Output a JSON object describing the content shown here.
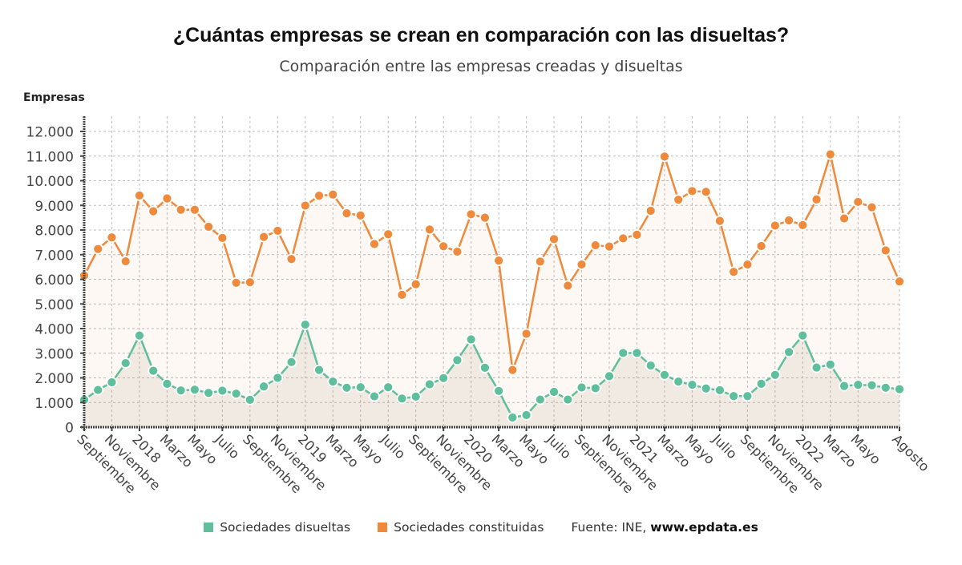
{
  "chart_data": {
    "type": "line",
    "title": "¿Cuántas empresas se crean en comparación con las disueltas?",
    "subtitle": "Comparación entre las empresas creadas y disueltas",
    "ylabel": "Empresas",
    "xlabel": "",
    "ylim": [
      0,
      12000
    ],
    "yticks": [
      0,
      1000,
      2000,
      3000,
      4000,
      5000,
      6000,
      7000,
      8000,
      9000,
      10000,
      11000,
      12000
    ],
    "ytick_labels": [
      "0",
      "1.000",
      "2.000",
      "3.000",
      "4.000",
      "5.000",
      "6.000",
      "7.000",
      "8.000",
      "9.000",
      "10.000",
      "11.000",
      "12.000"
    ],
    "grid": true,
    "legend_position": "bottom",
    "x": [
      "2017-09",
      "2017-10",
      "2017-11",
      "2017-12",
      "2018-01",
      "2018-02",
      "2018-03",
      "2018-04",
      "2018-05",
      "2018-06",
      "2018-07",
      "2018-08",
      "2018-09",
      "2018-10",
      "2018-11",
      "2018-12",
      "2019-01",
      "2019-02",
      "2019-03",
      "2019-04",
      "2019-05",
      "2019-06",
      "2019-07",
      "2019-08",
      "2019-09",
      "2019-10",
      "2019-11",
      "2019-12",
      "2020-01",
      "2020-02",
      "2020-03",
      "2020-04",
      "2020-05",
      "2020-06",
      "2020-07",
      "2020-08",
      "2020-09",
      "2020-10",
      "2020-11",
      "2020-12",
      "2021-01",
      "2021-02",
      "2021-03",
      "2021-04",
      "2021-05",
      "2021-06",
      "2021-07",
      "2021-08",
      "2021-09",
      "2021-10",
      "2021-11",
      "2021-12",
      "2022-01",
      "2022-02",
      "2022-03",
      "2022-04",
      "2022-05",
      "2022-06",
      "2022-07",
      "2022-08"
    ],
    "xtick_labels": [
      {
        "index": 0,
        "label": "Septiembre"
      },
      {
        "index": 2,
        "label": "Noviembre"
      },
      {
        "index": 4,
        "label": "2018"
      },
      {
        "index": 6,
        "label": "Marzo"
      },
      {
        "index": 8,
        "label": "Mayo"
      },
      {
        "index": 10,
        "label": "Julio"
      },
      {
        "index": 12,
        "label": "Septiembre"
      },
      {
        "index": 14,
        "label": "Noviembre"
      },
      {
        "index": 16,
        "label": "2019"
      },
      {
        "index": 18,
        "label": "Marzo"
      },
      {
        "index": 20,
        "label": "Mayo"
      },
      {
        "index": 22,
        "label": "Julio"
      },
      {
        "index": 24,
        "label": "Septiembre"
      },
      {
        "index": 26,
        "label": "Noviembre"
      },
      {
        "index": 28,
        "label": "2020"
      },
      {
        "index": 30,
        "label": "Marzo"
      },
      {
        "index": 32,
        "label": "Mayo"
      },
      {
        "index": 34,
        "label": "Julio"
      },
      {
        "index": 36,
        "label": "Septiembre"
      },
      {
        "index": 38,
        "label": "Noviembre"
      },
      {
        "index": 40,
        "label": "2021"
      },
      {
        "index": 42,
        "label": "Marzo"
      },
      {
        "index": 44,
        "label": "Mayo"
      },
      {
        "index": 46,
        "label": "Julio"
      },
      {
        "index": 48,
        "label": "Septiembre"
      },
      {
        "index": 50,
        "label": "Noviembre"
      },
      {
        "index": 52,
        "label": "2022"
      },
      {
        "index": 54,
        "label": "Marzo"
      },
      {
        "index": 56,
        "label": "Mayo"
      },
      {
        "index": 59,
        "label": "Agosto"
      }
    ],
    "series": [
      {
        "name": "Sociedades constituidas",
        "color": "#ef8a3c",
        "values": [
          6150,
          7230,
          7700,
          6730,
          9400,
          8760,
          9280,
          8820,
          8820,
          8130,
          7680,
          5860,
          5880,
          7720,
          7970,
          6820,
          8990,
          9390,
          9440,
          8680,
          8590,
          7430,
          7830,
          5370,
          5800,
          8020,
          7340,
          7120,
          8640,
          8500,
          6760,
          2320,
          3790,
          6720,
          7630,
          5740,
          6600,
          7380,
          7330,
          7660,
          7810,
          8780,
          10980,
          9230,
          9580,
          9550,
          8370,
          6300,
          6600,
          7350,
          8180,
          8390,
          8200,
          9240,
          11070,
          8470,
          9140,
          8920,
          7170,
          5910
        ]
      },
      {
        "name": "Sociedades disueltas",
        "color": "#5fbf9c",
        "values": [
          1110,
          1510,
          1820,
          2600,
          3720,
          2290,
          1760,
          1490,
          1520,
          1390,
          1480,
          1360,
          1110,
          1650,
          2000,
          2640,
          4160,
          2320,
          1850,
          1600,
          1620,
          1250,
          1620,
          1160,
          1240,
          1740,
          1990,
          2720,
          3560,
          2410,
          1470,
          390,
          490,
          1120,
          1430,
          1120,
          1610,
          1580,
          2070,
          3010,
          3010,
          2500,
          2120,
          1850,
          1720,
          1570,
          1500,
          1260,
          1260,
          1760,
          2120,
          3050,
          3720,
          2420,
          2540,
          1670,
          1720,
          1700,
          1600,
          1540
        ]
      }
    ]
  },
  "legend": {
    "items": [
      {
        "label": "Sociedades disueltas",
        "color": "#5fbf9c"
      },
      {
        "label": "Sociedades constituidas",
        "color": "#ef8a3c"
      }
    ],
    "source_prefix": "Fuente: INE, ",
    "source_site": "www.epdata.es"
  }
}
